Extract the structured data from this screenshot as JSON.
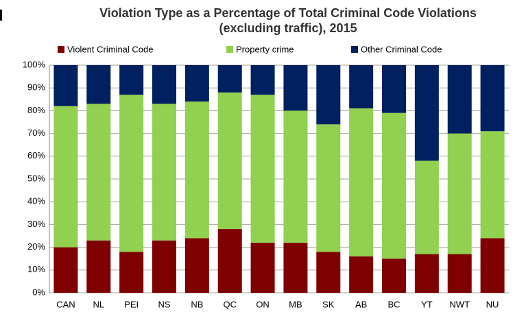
{
  "chart_data": {
    "type": "stacked_bar",
    "title": [
      "Violation Type as a Percentage  of Total Criminal Code Violations",
      "(excluding traffic), 2015"
    ],
    "categories": [
      "CAN",
      "NL",
      "PEI",
      "NS",
      "NB",
      "QC",
      "ON",
      "MB",
      "SK",
      "AB",
      "BC",
      "YT",
      "NWT",
      "NU"
    ],
    "series": [
      {
        "name": "Violent Criminal Code",
        "color": "#7f0000",
        "values": [
          20,
          23,
          18,
          23,
          24,
          28,
          22,
          22,
          18,
          16,
          15,
          17,
          17,
          24
        ]
      },
      {
        "name": "Property crime",
        "color": "#92d050",
        "values": [
          62,
          60,
          69,
          60,
          60,
          60,
          65,
          58,
          56,
          65,
          64,
          41,
          53,
          47
        ]
      },
      {
        "name": "Other Criminal Code",
        "color": "#002060",
        "values": [
          18,
          17,
          13,
          17,
          16,
          12,
          13,
          20,
          26,
          19,
          21,
          42,
          30,
          29
        ]
      }
    ],
    "ylim": [
      0,
      100
    ],
    "yticks": [
      {
        "value": 0,
        "label": "0%"
      },
      {
        "value": 10,
        "label": "10%"
      },
      {
        "value": 20,
        "label": "20%"
      },
      {
        "value": 30,
        "label": "30%"
      },
      {
        "value": 40,
        "label": "40%"
      },
      {
        "value": 50,
        "label": "50%"
      },
      {
        "value": 60,
        "label": "60%"
      },
      {
        "value": 70,
        "label": "70%"
      },
      {
        "value": 80,
        "label": "80%"
      },
      {
        "value": 90,
        "label": "90%"
      },
      {
        "value": 100,
        "label": "100%"
      }
    ],
    "grid": true,
    "legend": "top"
  }
}
